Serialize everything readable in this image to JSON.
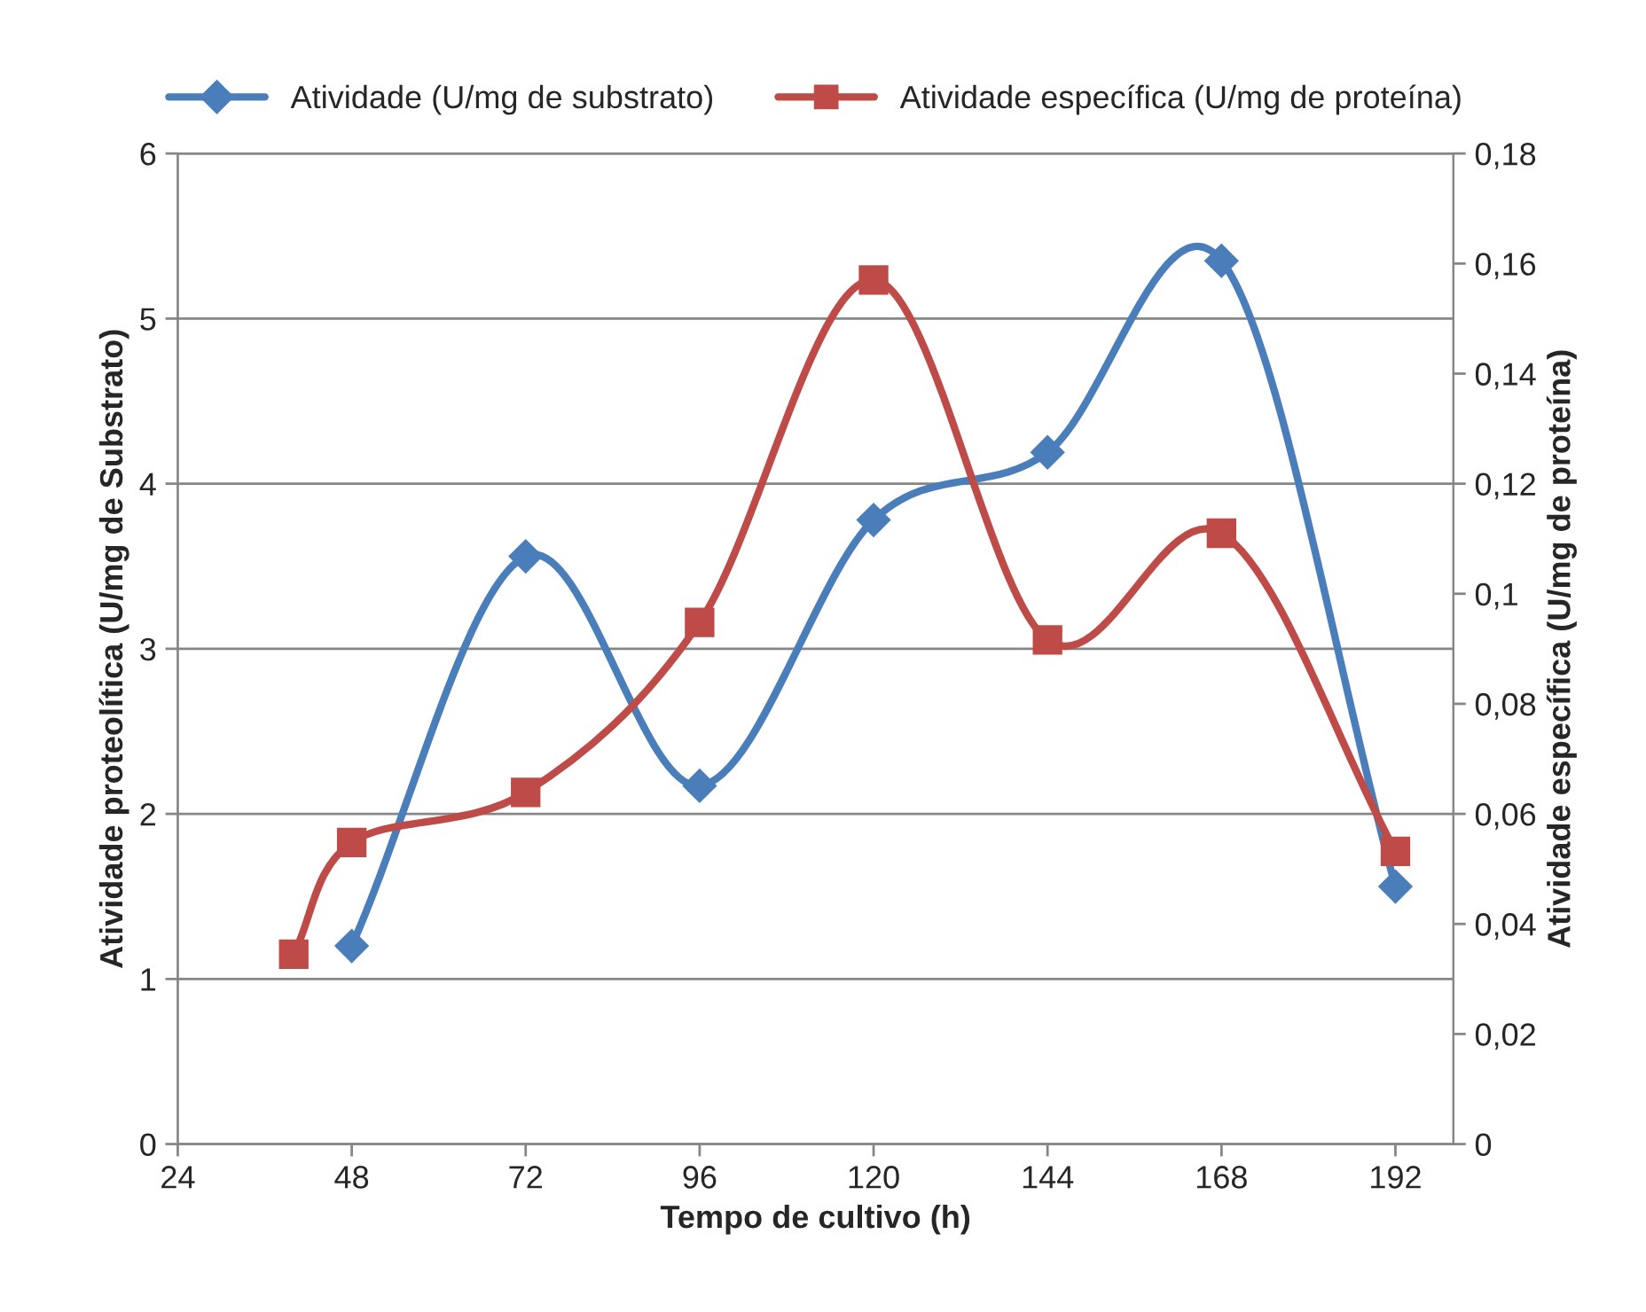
{
  "chart_data": {
    "type": "line",
    "xlabel": "Tempo de cultivo (h)",
    "ylabel": "Atividade proteolítica (U/mg de Substrato)",
    "y2label": "Atividade específica (U/mg de proteína)",
    "xlim": [
      24,
      200
    ],
    "xticks": [
      24,
      48,
      72,
      96,
      120,
      144,
      168,
      192
    ],
    "ylim": [
      0,
      6
    ],
    "yticks": [
      0,
      1,
      2,
      3,
      4,
      5,
      6
    ],
    "y2lim": [
      0,
      0.18
    ],
    "y2ticks": [
      {
        "value": 0,
        "label": "0"
      },
      {
        "value": 0.02,
        "label": "0,02"
      },
      {
        "value": 0.04,
        "label": "0,04"
      },
      {
        "value": 0.06,
        "label": "0,06"
      },
      {
        "value": 0.08,
        "label": "0,08"
      },
      {
        "value": 0.1,
        "label": "0,1"
      },
      {
        "value": 0.12,
        "label": "0,12"
      },
      {
        "value": 0.14,
        "label": "0,14"
      },
      {
        "value": 0.16,
        "label": "0,16"
      },
      {
        "value": 0.18,
        "label": "0,18"
      }
    ],
    "grid": "y",
    "legend": "top",
    "series": [
      {
        "name": "Atividade (U/mg de substrato)",
        "color": "#4a7ebb",
        "marker": "diamond",
        "x": [
          48,
          72,
          96,
          120,
          144,
          168,
          192
        ],
        "values": [
          1.2,
          3.56,
          2.17,
          3.78,
          4.19,
          5.35,
          1.56
        ]
      },
      {
        "name": "Atividade específica (U/mg de proteína)",
        "color": "#be4b48",
        "marker": "square",
        "axis": "y2",
        "x": [
          40,
          48,
          72,
          96,
          120,
          144,
          168,
          192
        ],
        "values": [
          0.0345,
          0.0548,
          0.0639,
          0.0948,
          0.157,
          0.0916,
          0.111,
          0.0532
        ]
      }
    ]
  }
}
